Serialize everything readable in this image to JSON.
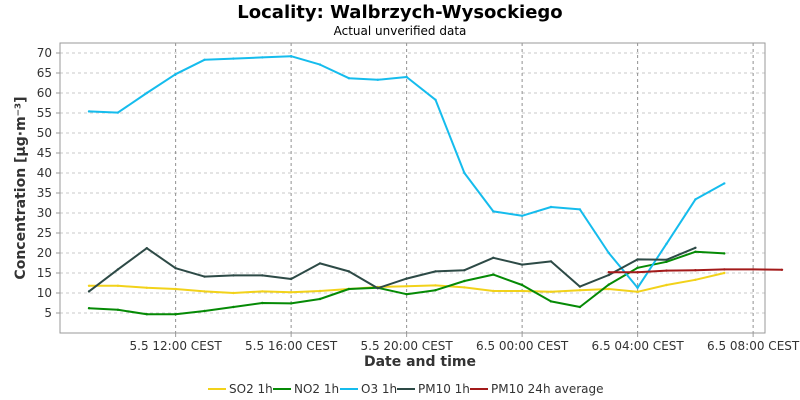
{
  "chart_data": {
    "type": "line",
    "title": "Locality: Walbrzych-Wysockiego",
    "subtitle": "Actual unverified data",
    "xlabel": "Date and time",
    "ylabel": "Concentration [µg·m⁻³]",
    "x_tick_labels": [
      "5.5 12:00 CEST",
      "5.5 16:00 CEST",
      "5.5 20:00 CEST",
      "6.5 00:00 CEST",
      "6.5 04:00 CEST",
      "6.5 08:00 CEST"
    ],
    "y_ticks": [
      5,
      10,
      15,
      20,
      25,
      30,
      35,
      40,
      45,
      50,
      55,
      60,
      65,
      70
    ],
    "ylim": [
      0,
      72.5
    ],
    "x_hours": [
      "5.5 09:00",
      "5.5 10:00",
      "5.5 11:00",
      "5.5 12:00",
      "5.5 13:00",
      "5.5 14:00",
      "5.5 15:00",
      "5.5 16:00",
      "5.5 17:00",
      "5.5 18:00",
      "5.5 19:00",
      "5.5 20:00",
      "5.5 21:00",
      "5.5 22:00",
      "5.5 23:00",
      "6.5 00:00",
      "6.5 01:00",
      "6.5 02:00",
      "6.5 03:00",
      "6.5 04:00",
      "6.5 05:00",
      "6.5 06:00",
      "6.5 07:00",
      "6.5 08:00",
      "6.5 09:00",
      "6.5 10:00",
      "6.5 11:00"
    ],
    "grid": true,
    "legend_position": "bottom",
    "series": [
      {
        "name": "SO2 1h",
        "color": "#f2d21a",
        "values": [
          11.8,
          11.8,
          11.3,
          11.0,
          10.4,
          10.0,
          10.4,
          10.2,
          10.5,
          11.0,
          11.5,
          11.7,
          11.9,
          11.4,
          10.5,
          10.5,
          10.3,
          10.7,
          11.0,
          10.3,
          12.0,
          13.3,
          15.0,
          null,
          null,
          null,
          null
        ]
      },
      {
        "name": "NO2 1h",
        "color": "#058a05",
        "values": [
          6.2,
          5.8,
          4.7,
          4.7,
          5.5,
          6.5,
          7.5,
          7.4,
          8.5,
          11.0,
          11.3,
          9.7,
          10.7,
          13.0,
          14.6,
          12.0,
          7.9,
          6.5,
          12.1,
          16.3,
          17.8,
          20.3,
          19.9,
          null,
          null,
          null,
          null
        ]
      },
      {
        "name": "O3 1h",
        "color": "#15bced",
        "values": [
          55.4,
          55.1,
          60.0,
          64.7,
          68.3,
          68.6,
          68.9,
          69.2,
          67.1,
          63.7,
          63.3,
          64.0,
          58.3,
          40.0,
          30.4,
          29.3,
          31.5,
          30.9,
          20.0,
          11.3,
          22.3,
          33.4,
          37.4,
          null,
          null,
          null,
          null
        ]
      },
      {
        "name": "PM10 1h",
        "color": "#2d4a46",
        "values": [
          10.4,
          15.9,
          21.2,
          16.2,
          14.1,
          14.4,
          14.4,
          13.5,
          17.4,
          15.4,
          11.2,
          13.6,
          15.4,
          15.7,
          18.8,
          17.1,
          17.9,
          11.6,
          14.5,
          18.4,
          18.3,
          21.3,
          null,
          null,
          null,
          null,
          null
        ]
      },
      {
        "name": "PM10 24h average",
        "color": "#a31a1a",
        "values": [
          null,
          null,
          null,
          null,
          null,
          null,
          null,
          null,
          null,
          null,
          null,
          null,
          null,
          null,
          null,
          null,
          null,
          null,
          15.2,
          15.2,
          15.6,
          15.7,
          15.9,
          15.9,
          15.8,
          null,
          null
        ]
      }
    ]
  }
}
